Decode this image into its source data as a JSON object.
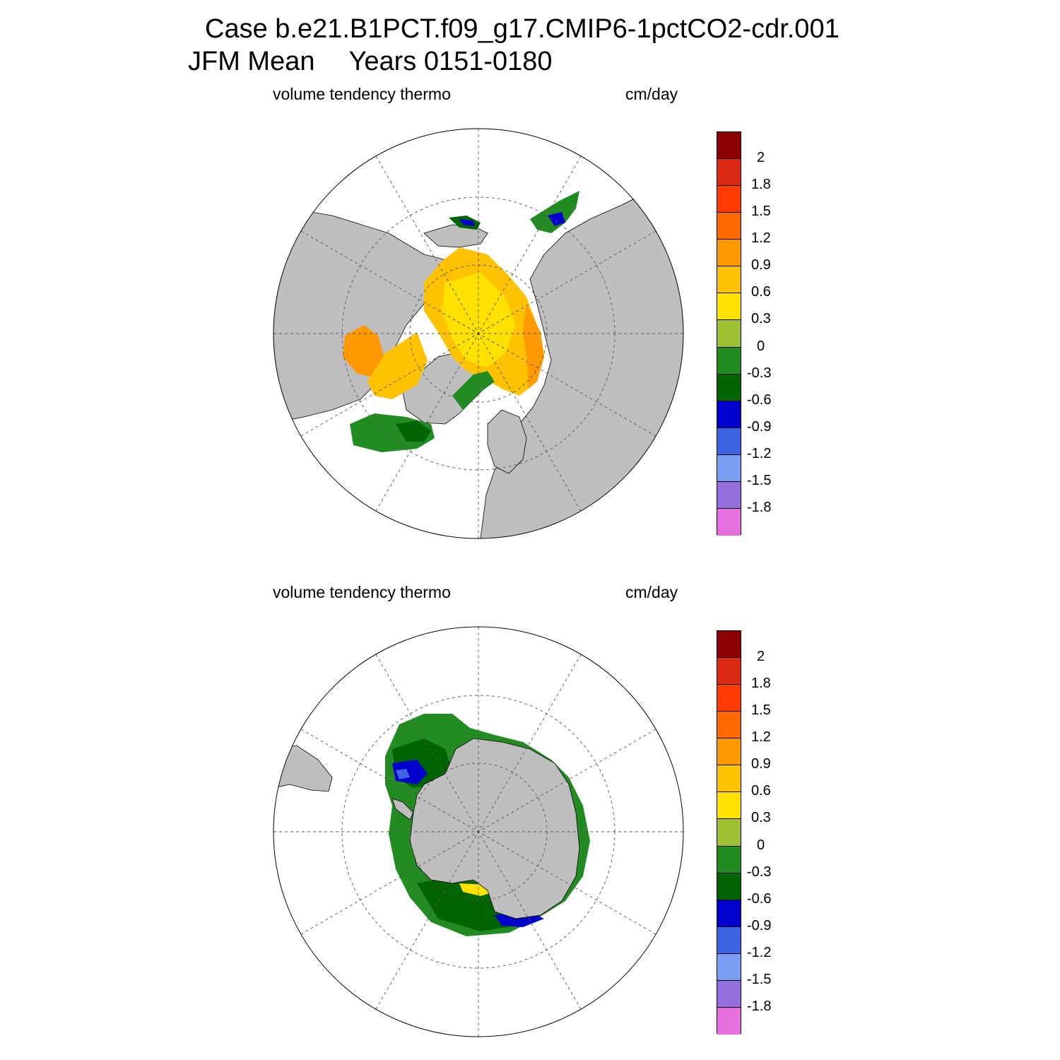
{
  "title": {
    "case_line": "Case b.e21.B1PCT.f09_g17.CMIP6-1pctCO2-cdr.001",
    "season": "JFM Mean",
    "years": "Years 0151-0180"
  },
  "colors": {
    "land": "#bebebe",
    "swatches": [
      "#8b0000",
      "#dc2a12",
      "#ff3b00",
      "#ff6a00",
      "#ff9900",
      "#ffc200",
      "#ffe100",
      "#9dbf31",
      "#228b22",
      "#006400",
      "#0000cd",
      "#3e64e6",
      "#789ef2",
      "#9370db",
      "#e66fdc"
    ]
  },
  "colorbar_ticks": [
    "2",
    "1.8",
    "1.5",
    "1.2",
    "0.9",
    "0.6",
    "0.3",
    "0",
    "-0.3",
    "-0.6",
    "-0.9",
    "-1.2",
    "-1.5",
    "-1.8"
  ],
  "panels": [
    {
      "id": "nh",
      "variable": "volume tendency thermo",
      "units": "cm/day"
    },
    {
      "id": "sh",
      "variable": "volume tendency thermo",
      "units": "cm/day"
    }
  ]
}
